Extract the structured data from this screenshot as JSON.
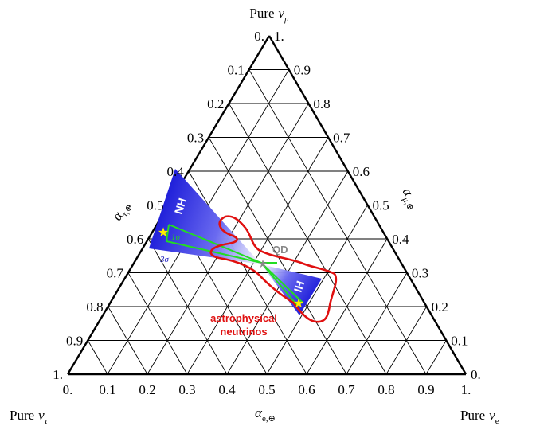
{
  "corners": {
    "top": {
      "prefix": "Pure",
      "symbol": "ν",
      "sub": "μ"
    },
    "left": {
      "prefix": "Pure",
      "symbol": "ν",
      "sub": "τ"
    },
    "right": {
      "prefix": "Pure",
      "symbol": "ν",
      "sub": "e"
    }
  },
  "axes": {
    "bottom": {
      "symbol": "α",
      "sub": "e,⊕"
    },
    "left": {
      "symbol": "α",
      "sub": "τ,⊕"
    },
    "right": {
      "symbol": "α",
      "sub": "μ,⊕"
    }
  },
  "ticks": [
    "0.",
    "0.1",
    "0.2",
    "0.3",
    "0.4",
    "0.5",
    "0.6",
    "0.7",
    "0.8",
    "0.9",
    "1."
  ],
  "regions": {
    "nh_label": "NH",
    "ih_label": "IH",
    "qd_label": "QD",
    "sigma1_label": "1σ",
    "sigma3_label": "3σ",
    "astro_label_line1": "astrophysical",
    "astro_label_line2": "neutrinos"
  },
  "colors": {
    "grid": "#000000",
    "nh_band": "#1f1fe0",
    "ih_band": "#1f1fe0",
    "sigma1": "#22dd22",
    "astro_contour": "#e01010",
    "qd": "#888888",
    "best_fit_star": "#ffee00"
  }
}
